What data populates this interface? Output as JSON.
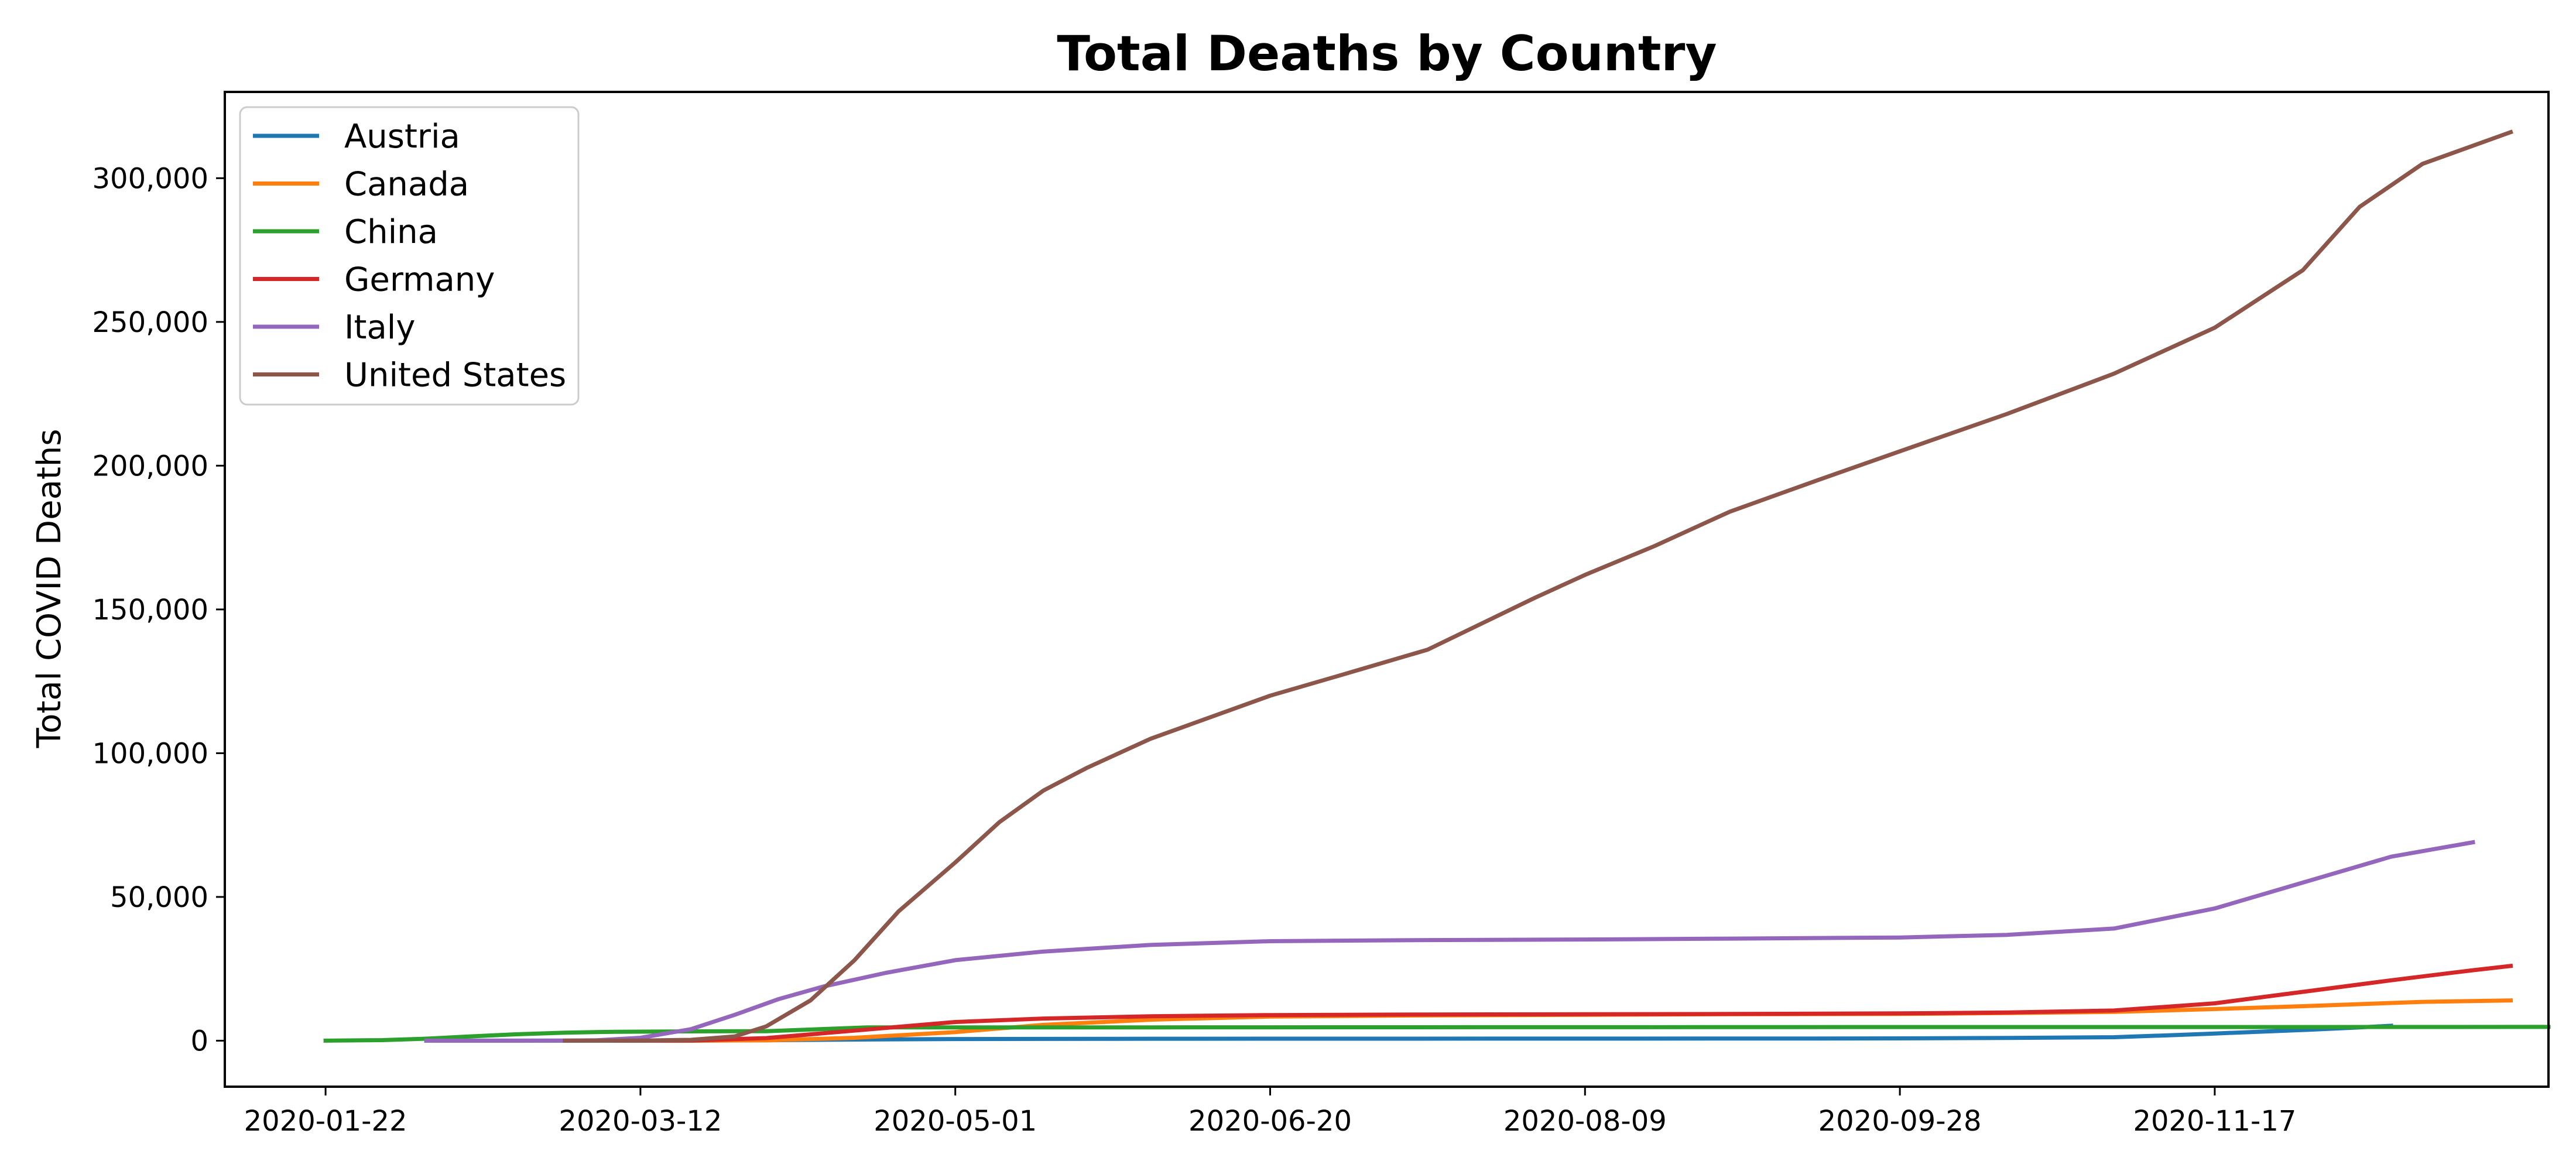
{
  "chart_data": {
    "type": "line",
    "title": "Total Deaths by Country",
    "xlabel": "",
    "ylabel": "Total COVID Deaths",
    "x_axis_type": "date",
    "x_ticks": [
      "2020-01-22",
      "2020-03-12",
      "2020-05-01",
      "2020-06-20",
      "2020-08-09",
      "2020-09-28",
      "2020-11-17"
    ],
    "xlim": [
      "2020-01-06",
      "2021-01-09"
    ],
    "y_ticks": [
      0,
      50000,
      100000,
      150000,
      200000,
      250000,
      300000
    ],
    "y_tick_labels": [
      "0",
      "50,000",
      "100,000",
      "150,000",
      "200,000",
      "250,000",
      "300,000"
    ],
    "ylim": [
      -16000,
      330000
    ],
    "grid": false,
    "legend_position": "top-left",
    "series": [
      {
        "name": "Austria",
        "color": "#1f77b4",
        "points": [
          [
            "2020-02-07",
            0
          ],
          [
            "2020-03-12",
            0
          ],
          [
            "2020-03-20",
            10
          ],
          [
            "2020-04-01",
            150
          ],
          [
            "2020-04-15",
            390
          ],
          [
            "2020-05-01",
            580
          ],
          [
            "2020-06-01",
            670
          ],
          [
            "2020-07-01",
            700
          ],
          [
            "2020-08-01",
            720
          ],
          [
            "2020-09-01",
            740
          ],
          [
            "2020-09-15",
            770
          ],
          [
            "2020-10-01",
            830
          ],
          [
            "2020-10-15",
            940
          ],
          [
            "2020-11-01",
            1200
          ],
          [
            "2020-11-10",
            1900
          ],
          [
            "2020-11-17",
            2500
          ],
          [
            "2020-11-25",
            3200
          ],
          [
            "2020-12-02",
            3800
          ],
          [
            "2020-12-10",
            4600
          ],
          [
            "2020-12-15",
            5200
          ]
        ]
      },
      {
        "name": "Canada",
        "color": "#ff7f0e",
        "points": [
          [
            "2020-03-08",
            0
          ],
          [
            "2020-03-20",
            10
          ],
          [
            "2020-04-01",
            100
          ],
          [
            "2020-04-15",
            1000
          ],
          [
            "2020-05-01",
            3000
          ],
          [
            "2020-05-15",
            5500
          ],
          [
            "2020-06-01",
            7300
          ],
          [
            "2020-06-20",
            8400
          ],
          [
            "2020-07-15",
            8800
          ],
          [
            "2020-08-09",
            9000
          ],
          [
            "2020-09-01",
            9200
          ],
          [
            "2020-09-28",
            9300
          ],
          [
            "2020-10-15",
            9600
          ],
          [
            "2020-11-01",
            10000
          ],
          [
            "2020-11-17",
            11000
          ],
          [
            "2020-12-01",
            12000
          ],
          [
            "2020-12-20",
            13500
          ],
          [
            "2021-01-03",
            14000
          ]
        ]
      },
      {
        "name": "China",
        "color": "#2ca02c",
        "points": [
          [
            "2020-01-22",
            17
          ],
          [
            "2020-01-31",
            200
          ],
          [
            "2020-02-07",
            700
          ],
          [
            "2020-02-14",
            1500
          ],
          [
            "2020-02-21",
            2200
          ],
          [
            "2020-02-29",
            2800
          ],
          [
            "2020-03-08",
            3100
          ],
          [
            "2020-03-20",
            3250
          ],
          [
            "2020-04-01",
            3300
          ],
          [
            "2020-04-17",
            4600
          ],
          [
            "2020-06-01",
            4630
          ],
          [
            "2020-08-01",
            4700
          ],
          [
            "2020-10-01",
            4750
          ],
          [
            "2020-12-01",
            4750
          ],
          [
            "2021-01-09",
            4800
          ]
        ]
      },
      {
        "name": "Germany",
        "color": "#d62728",
        "points": [
          [
            "2020-03-08",
            0
          ],
          [
            "2020-03-20",
            50
          ],
          [
            "2020-04-01",
            900
          ],
          [
            "2020-04-15",
            3500
          ],
          [
            "2020-05-01",
            6500
          ],
          [
            "2020-05-15",
            7700
          ],
          [
            "2020-06-01",
            8500
          ],
          [
            "2020-06-20",
            8900
          ],
          [
            "2020-07-15",
            9100
          ],
          [
            "2020-08-09",
            9200
          ],
          [
            "2020-09-01",
            9300
          ],
          [
            "2020-09-28",
            9500
          ],
          [
            "2020-10-15",
            9800
          ],
          [
            "2020-11-01",
            10500
          ],
          [
            "2020-11-17",
            13000
          ],
          [
            "2020-12-01",
            17000
          ],
          [
            "2020-12-15",
            21000
          ],
          [
            "2020-12-28",
            24500
          ],
          [
            "2021-01-03",
            26000
          ]
        ]
      },
      {
        "name": "Italy",
        "color": "#9467bd",
        "points": [
          [
            "2020-02-07",
            0
          ],
          [
            "2020-02-21",
            0
          ],
          [
            "2020-02-29",
            30
          ],
          [
            "2020-03-05",
            150
          ],
          [
            "2020-03-12",
            1000
          ],
          [
            "2020-03-20",
            4000
          ],
          [
            "2020-03-27",
            9000
          ],
          [
            "2020-04-03",
            14500
          ],
          [
            "2020-04-10",
            18800
          ],
          [
            "2020-04-20",
            23600
          ],
          [
            "2020-05-01",
            28000
          ],
          [
            "2020-05-15",
            31000
          ],
          [
            "2020-06-01",
            33300
          ],
          [
            "2020-06-20",
            34600
          ],
          [
            "2020-07-15",
            35000
          ],
          [
            "2020-08-09",
            35200
          ],
          [
            "2020-09-01",
            35500
          ],
          [
            "2020-09-28",
            35900
          ],
          [
            "2020-10-15",
            36800
          ],
          [
            "2020-11-01",
            39000
          ],
          [
            "2020-11-17",
            46000
          ],
          [
            "2020-12-01",
            55000
          ],
          [
            "2020-12-15",
            64000
          ],
          [
            "2020-12-28",
            69000
          ]
        ]
      },
      {
        "name": "United States",
        "color": "#8c564b",
        "points": [
          [
            "2020-02-29",
            0
          ],
          [
            "2020-03-12",
            40
          ],
          [
            "2020-03-20",
            300
          ],
          [
            "2020-03-27",
            1500
          ],
          [
            "2020-04-01",
            5000
          ],
          [
            "2020-04-08",
            14000
          ],
          [
            "2020-04-15",
            28000
          ],
          [
            "2020-04-22",
            45000
          ],
          [
            "2020-05-01",
            62000
          ],
          [
            "2020-05-08",
            76000
          ],
          [
            "2020-05-15",
            87000
          ],
          [
            "2020-05-22",
            95000
          ],
          [
            "2020-06-01",
            105000
          ],
          [
            "2020-06-20",
            120000
          ],
          [
            "2020-07-01",
            127000
          ],
          [
            "2020-07-15",
            136000
          ],
          [
            "2020-08-01",
            154000
          ],
          [
            "2020-08-09",
            162000
          ],
          [
            "2020-08-20",
            172000
          ],
          [
            "2020-09-01",
            184000
          ],
          [
            "2020-09-15",
            195000
          ],
          [
            "2020-09-28",
            205000
          ],
          [
            "2020-10-15",
            218000
          ],
          [
            "2020-11-01",
            232000
          ],
          [
            "2020-11-17",
            248000
          ],
          [
            "2020-12-01",
            268000
          ],
          [
            "2020-12-10",
            290000
          ],
          [
            "2020-12-20",
            305000
          ],
          [
            "2021-01-03",
            316000
          ]
        ]
      }
    ]
  }
}
